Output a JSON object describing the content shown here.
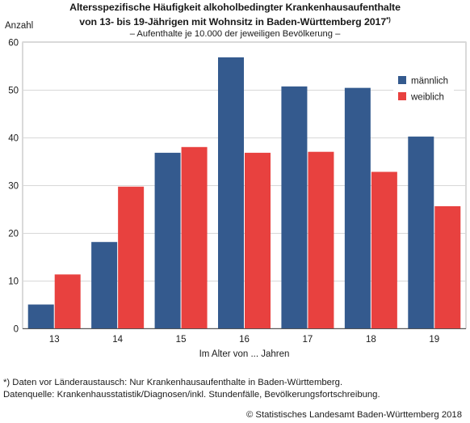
{
  "title_line1": "Altersspezifische Häufigkeit alkoholbedingter Krankenhausaufenthalte",
  "title_line2": "von 13- bis 19-Jährigen mit Wohnsitz in Baden-Württemberg 2017",
  "title_footnote_mark": "*)",
  "subtitle": "– Aufenthalte je 10.000 der jeweiligen Bevölkerung –",
  "footnote": "*) Daten vor Länderaustausch: Nur Krankenhausaufenthalte in Baden-Württemberg.",
  "source": "Datenquelle: Krankenhausstatistik/Diagnosen/inkl. Stundenfälle, Bevölkerungsfortschreibung.",
  "copyright": "© Statistisches Landesamt Baden-Württemberg 2018",
  "chart_data": {
    "type": "bar",
    "title": "Altersspezifische Häufigkeit alkoholbedingter Krankenhausaufenthalte von 13- bis 19-Jährigen mit Wohnsitz in Baden-Württemberg 2017",
    "subtitle": "– Aufenthalte je 10.000 der jeweiligen Bevölkerung –",
    "xlabel": "Im Alter von ... Jahren",
    "ylabel": "Anzahl",
    "categories": [
      "13",
      "14",
      "15",
      "16",
      "17",
      "18",
      "19"
    ],
    "series": [
      {
        "name": "männlich",
        "color": "#345a8e",
        "values": [
          5.0,
          18.1,
          36.8,
          56.8,
          50.7,
          50.4,
          40.2
        ]
      },
      {
        "name": "weiblich",
        "color": "#e8413f",
        "values": [
          11.3,
          29.7,
          38.0,
          36.8,
          37.0,
          32.8,
          25.6
        ]
      }
    ],
    "ylim": [
      0,
      60
    ],
    "yticks": [
      0,
      10,
      20,
      30,
      40,
      50,
      60
    ],
    "grid": true,
    "legend_position": "top-right"
  }
}
